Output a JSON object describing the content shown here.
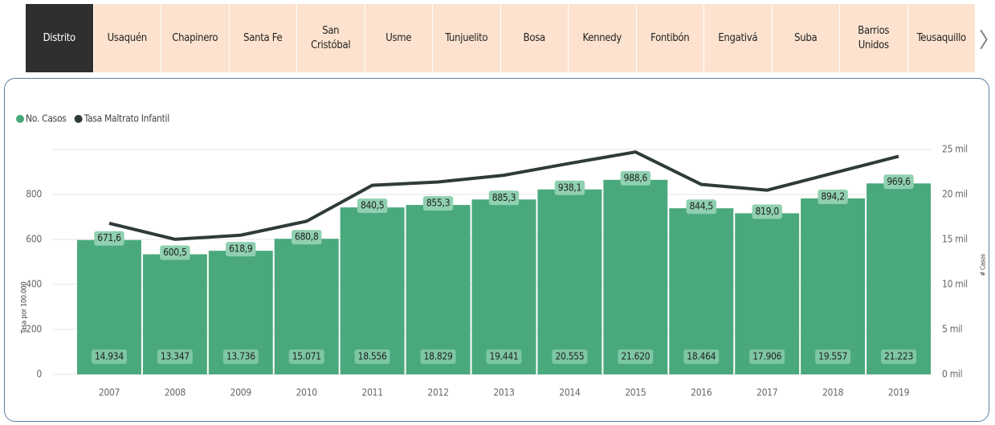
{
  "tabs": [
    "Distrito",
    "Usaquén",
    "Chapinero",
    "Santa Fe",
    "San Cristóbal",
    "Usme",
    "Tunjuelito",
    "Bosa",
    "Kennedy",
    "Fontibón",
    "Engativá",
    "Suba",
    "Barrios Unidos",
    "Teusaquillo"
  ],
  "chart_data": {
    "type": "combo",
    "y_label": "Tasa por 100.000",
    "y2_label": "# Casos",
    "categories": [
      "2007",
      "2008",
      "2009",
      "2010",
      "2011",
      "2012",
      "2013",
      "2014",
      "2015",
      "2016",
      "2017",
      "2018",
      "2019"
    ],
    "series": [
      {
        "name": "No. Casos",
        "type": "bar",
        "axis": "y2",
        "color": "#4aa97c",
        "values": [
          14934,
          13347,
          13736,
          15071,
          18556,
          18829,
          19441,
          20555,
          21620,
          18464,
          17906,
          19557,
          21223
        ],
        "value_labels": [
          "14.934",
          "13.347",
          "13.736",
          "15.071",
          "18.556",
          "18.829",
          "19.441",
          "20.555",
          "21.620",
          "18.464",
          "17.906",
          "19.557",
          "21.223"
        ]
      },
      {
        "name": "Tasa Maltrato Infantil",
        "type": "line",
        "axis": "y",
        "color": "#2e3b3a",
        "values": [
          671.6,
          600.5,
          618.9,
          680.8,
          840.5,
          855.3,
          885.3,
          938.1,
          988.6,
          844.5,
          819.0,
          894.2,
          969.6
        ],
        "value_labels": [
          "671,6",
          "600,5",
          "618,9",
          "680,8",
          "840,5",
          "855,3",
          "885,3",
          "938,1",
          "988,6",
          "844,5",
          "819,0",
          "894,2",
          "969,6"
        ]
      }
    ],
    "ylim": [
      0,
      1000
    ],
    "yticks": [
      0,
      200,
      400,
      600,
      800
    ],
    "y2lim": [
      0,
      25000
    ],
    "y2ticks": [
      {
        "value": 0,
        "label": "0 mil"
      },
      {
        "value": 5000,
        "label": "5 mil"
      },
      {
        "value": 10000,
        "label": "10 mil"
      },
      {
        "value": 15000,
        "label": "15 mil"
      },
      {
        "value": 20000,
        "label": "20 mil"
      },
      {
        "value": 25000,
        "label": "25 mil"
      }
    ],
    "grid": true
  }
}
